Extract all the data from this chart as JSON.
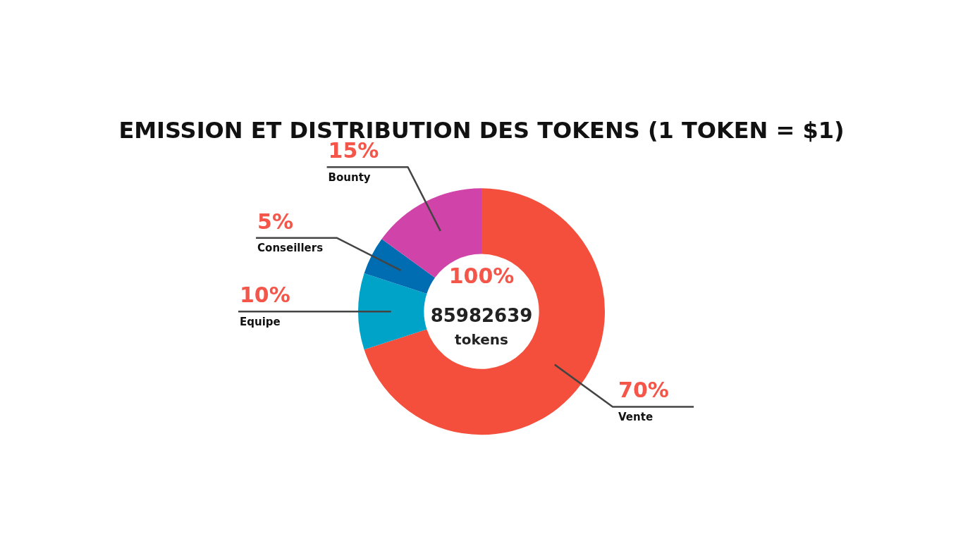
{
  "chart_data": {
    "type": "donut",
    "title": "EMISSION ET DISTRIBUTION DES TOKENS (1 TOKEN = $1)",
    "categories": [
      "Vente",
      "Equipe",
      "Conseillers",
      "Bounty"
    ],
    "values": [
      70,
      10,
      5,
      15
    ],
    "value_labels": [
      "70%",
      "10%",
      "5%",
      "15%"
    ],
    "colors": [
      "#f44f3c",
      "#00a3c8",
      "#006db3",
      "#d043a8"
    ],
    "annotations": [
      "100%",
      "85982639",
      "tokens"
    ],
    "legend": false
  }
}
